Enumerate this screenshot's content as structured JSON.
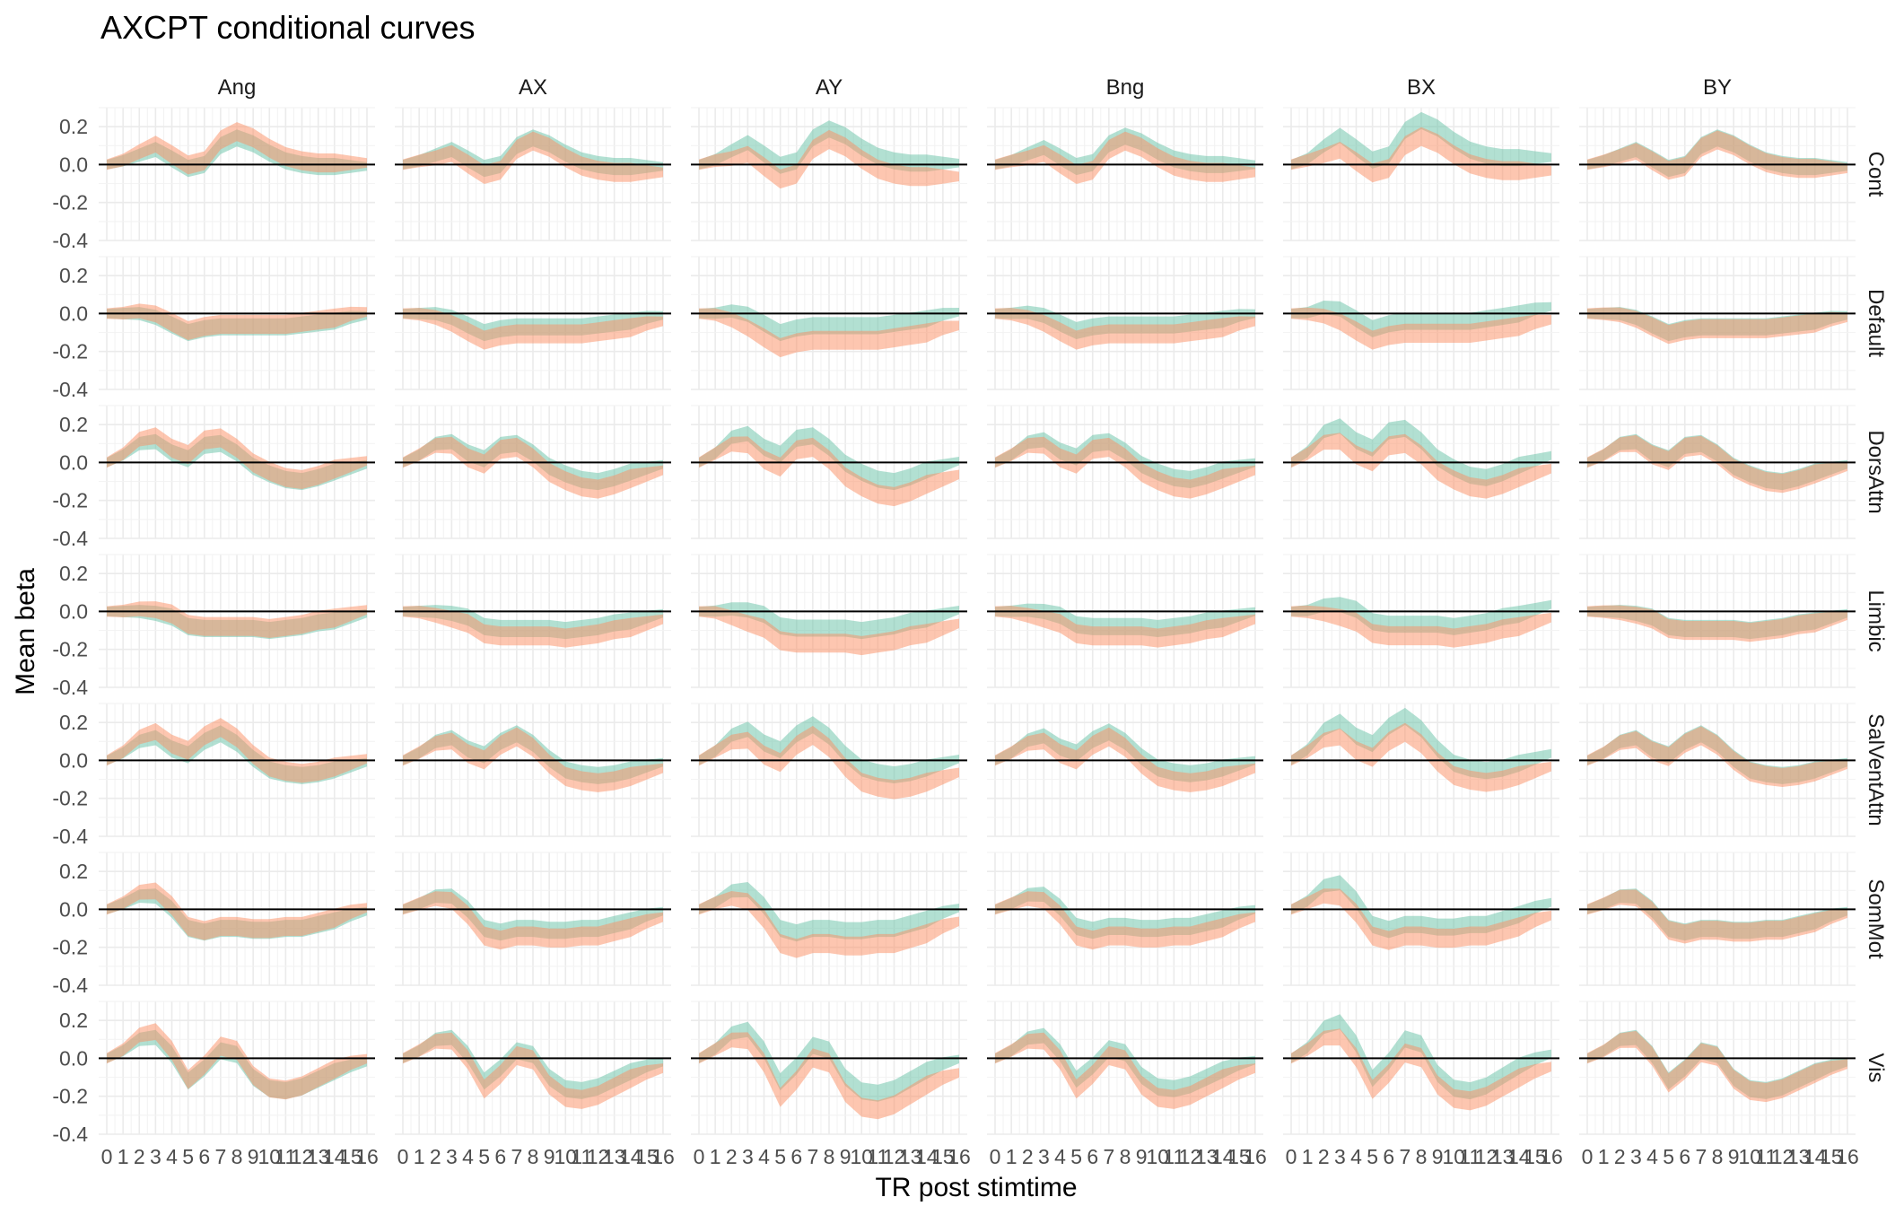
{
  "chart_data": {
    "type": "area",
    "title": "AXCPT conditional curves",
    "xlabel": "TR post stimtime",
    "ylabel": "Mean beta",
    "x": [
      0,
      1,
      2,
      3,
      4,
      5,
      6,
      7,
      8,
      9,
      10,
      11,
      12,
      13,
      14,
      15,
      16
    ],
    "x_tick_labels": [
      "0",
      "1",
      "2",
      "3",
      "4",
      "5",
      "6",
      "7",
      "8",
      "9",
      "10",
      "11",
      "12",
      "13",
      "14",
      "15",
      "16"
    ],
    "ylim": [
      -0.4,
      0.3
    ],
    "y_ticks": [
      -0.4,
      -0.2,
      0.0,
      0.2
    ],
    "y_tick_labels": [
      "-0.4",
      "-0.2",
      "0.0",
      "0.2"
    ],
    "reference_line_y": 0,
    "grid": true,
    "columns": [
      "Ang",
      "AX",
      "AY",
      "Bng",
      "BX",
      "BY"
    ],
    "rows": [
      "Cont",
      "Default",
      "DorsAttn",
      "Limbic",
      "SalVentAttn",
      "SomMot",
      "Vis"
    ],
    "series_colors": [
      "#66c2a5",
      "#fc8d62"
    ],
    "band_opacity": 0.5,
    "shapes": {
      "Cont": [
        0.0,
        0.02,
        0.05,
        0.08,
        0.03,
        -0.02,
        0.0,
        0.1,
        0.14,
        0.11,
        0.06,
        0.02,
        0.0,
        -0.01,
        -0.01,
        -0.01,
        -0.01
      ],
      "Default": [
        0.0,
        0.0,
        0.0,
        -0.02,
        -0.06,
        -0.1,
        -0.08,
        -0.07,
        -0.07,
        -0.07,
        -0.07,
        -0.07,
        -0.06,
        -0.05,
        -0.04,
        -0.02,
        -0.01
      ],
      "DorsAttn": [
        0.0,
        0.04,
        0.1,
        0.11,
        0.05,
        0.02,
        0.09,
        0.1,
        0.05,
        -0.02,
        -0.06,
        -0.09,
        -0.1,
        -0.08,
        -0.05,
        -0.03,
        -0.01
      ],
      "Limbic": [
        0.0,
        0.0,
        0.0,
        -0.01,
        -0.03,
        -0.08,
        -0.09,
        -0.09,
        -0.09,
        -0.09,
        -0.1,
        -0.09,
        -0.08,
        -0.06,
        -0.05,
        -0.03,
        -0.01
      ],
      "SalVentAttn": [
        0.0,
        0.04,
        0.1,
        0.12,
        0.06,
        0.03,
        0.1,
        0.14,
        0.09,
        0.01,
        -0.05,
        -0.07,
        -0.08,
        -0.07,
        -0.05,
        -0.03,
        -0.01
      ],
      "SomMot": [
        0.0,
        0.03,
        0.07,
        0.07,
        0.0,
        -0.1,
        -0.12,
        -0.1,
        -0.1,
        -0.11,
        -0.11,
        -0.1,
        -0.1,
        -0.08,
        -0.06,
        -0.03,
        -0.01
      ],
      "Vis": [
        0.0,
        0.04,
        0.1,
        0.11,
        0.02,
        -0.12,
        -0.05,
        0.04,
        0.02,
        -0.1,
        -0.16,
        -0.17,
        -0.15,
        -0.11,
        -0.07,
        -0.04,
        -0.02
      ]
    },
    "series": [
      {
        "shift": {
          "Ang": 0.0,
          "AX": 0.0,
          "AY": 0.02,
          "Bng": 0.01,
          "BX": 0.05,
          "BY": 0.0
        },
        "amp": {
          "Ang": 1.0,
          "AX": 1.0,
          "AY": 1.2,
          "Bng": 1.0,
          "BX": 1.3,
          "BY": 1.0
        },
        "halfwidth": 0.045
      },
      {
        "shift": {
          "Ang": 0.02,
          "AX": -0.03,
          "AY": -0.05,
          "Bng": -0.03,
          "BX": -0.02,
          "BY": -0.01
        },
        "amp": {
          "Ang": 1.1,
          "AX": 1.1,
          "AY": 1.3,
          "Bng": 1.1,
          "BX": 1.2,
          "BY": 1.0
        },
        "halfwidth": 0.05
      }
    ]
  }
}
